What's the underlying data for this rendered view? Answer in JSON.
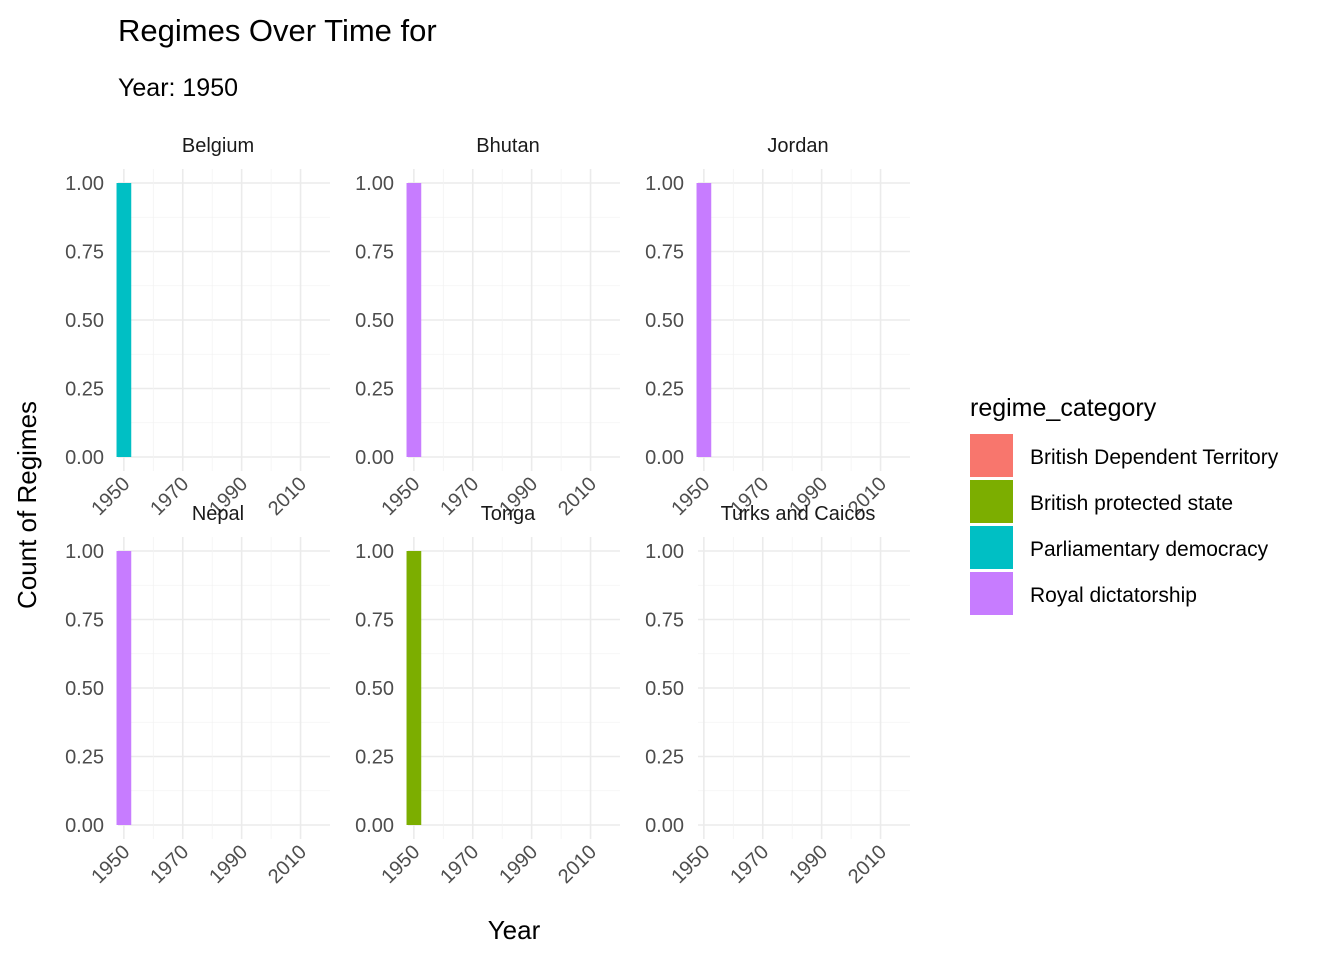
{
  "chart_data": {
    "type": "bar",
    "title": "Regimes Over Time for",
    "subtitle": "Year: 1950",
    "xlabel": "Year",
    "ylabel": "Count of Regimes",
    "xlim": [
      1948,
      2020
    ],
    "ylim": [
      0,
      1
    ],
    "x_ticks": [
      1950,
      1970,
      1990,
      2010
    ],
    "y_ticks": [
      "0.00",
      "0.25",
      "0.50",
      "0.75",
      "1.00"
    ],
    "grid": true,
    "legend": {
      "title": "regime_category",
      "placement": "right",
      "entries": [
        {
          "name": "British Dependent Territory",
          "color": "#F8766D"
        },
        {
          "name": "British protected state",
          "color": "#7CAE00"
        },
        {
          "name": "Parliamentary democracy",
          "color": "#00BFC4"
        },
        {
          "name": "Royal dictatorship",
          "color": "#C77CFF"
        }
      ]
    },
    "facets": [
      {
        "name": "Belgium",
        "bars": [
          {
            "x": 1950,
            "y": 1,
            "category": "Parliamentary democracy"
          }
        ]
      },
      {
        "name": "Bhutan",
        "bars": [
          {
            "x": 1950,
            "y": 1,
            "category": "Royal dictatorship"
          }
        ]
      },
      {
        "name": "Jordan",
        "bars": [
          {
            "x": 1950,
            "y": 1,
            "category": "Royal dictatorship"
          }
        ]
      },
      {
        "name": "Nepal",
        "bars": [
          {
            "x": 1950,
            "y": 1,
            "category": "Royal dictatorship"
          }
        ]
      },
      {
        "name": "Tonga",
        "bars": [
          {
            "x": 1950,
            "y": 1,
            "category": "British protected state"
          }
        ]
      },
      {
        "name": "Turks and Caicos",
        "bars": []
      }
    ]
  }
}
